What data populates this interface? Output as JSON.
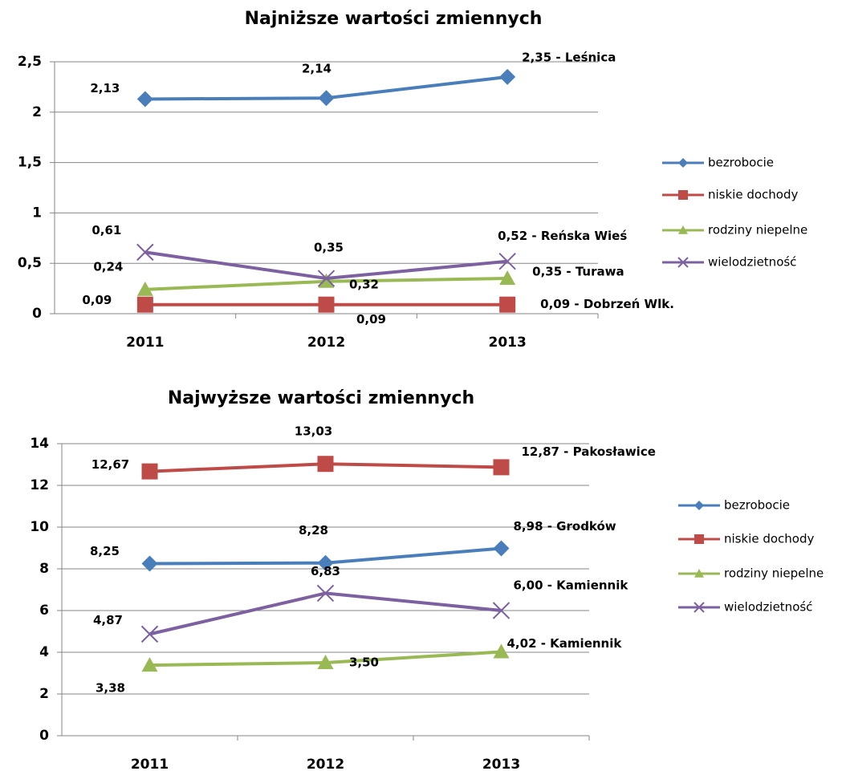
{
  "chart_data": [
    {
      "type": "line",
      "title": "Najniższe wartości zmiennych",
      "categories": [
        "2011",
        "2012",
        "2013"
      ],
      "ylim": [
        0,
        2.5
      ],
      "yticks": [
        0,
        {
          "value": 0.5,
          "label": "0,5"
        },
        1,
        {
          "value": 1.5,
          "label": "1,5"
        },
        2,
        {
          "value": 2.5,
          "label": "2,5"
        }
      ],
      "grid": true,
      "legend": "right",
      "series": [
        {
          "name": "bezrobocie",
          "color": "#4a7ebb",
          "marker": "diamond",
          "values": [
            2.13,
            2.14,
            2.35
          ],
          "value_labels": [
            "2,13",
            "2,14",
            "2,35 -  Leśnica"
          ]
        },
        {
          "name": "niskie dochody",
          "color": "#be4b48",
          "marker": "square",
          "values": [
            0.09,
            0.09,
            0.09
          ],
          "value_labels": [
            "0,09",
            "0,09",
            "0,09 - Dobrzeń Wlk."
          ]
        },
        {
          "name": "rodziny niepelne",
          "color": "#98b954",
          "marker": "triangle",
          "values": [
            0.24,
            0.32,
            0.35
          ],
          "value_labels": [
            "0,24",
            "0,32",
            "0,35 - Turawa"
          ]
        },
        {
          "name": "wielodzietność",
          "color": "#7d60a0",
          "marker": "x",
          "values": [
            0.61,
            0.35,
            0.52
          ],
          "value_labels": [
            "0,61",
            "0,35",
            "0,52 - Reńska Wieś"
          ]
        }
      ]
    },
    {
      "type": "line",
      "title": "Najwyższe wartości zmiennych",
      "categories": [
        "2011",
        "2012",
        "2013"
      ],
      "ylim": [
        0,
        14
      ],
      "yticks": [
        0,
        2,
        4,
        6,
        8,
        10,
        12,
        14
      ],
      "grid": true,
      "legend": "right",
      "series": [
        {
          "name": "bezrobocie",
          "color": "#4a7ebb",
          "marker": "diamond",
          "values": [
            8.25,
            8.28,
            8.98
          ],
          "value_labels": [
            "8,25",
            "8,28",
            "8,98 - Grodków"
          ]
        },
        {
          "name": "niskie dochody",
          "color": "#be4b48",
          "marker": "square",
          "values": [
            12.67,
            13.03,
            12.87
          ],
          "value_labels": [
            "12,67",
            "13,03",
            "12,87 - Pakosławice"
          ]
        },
        {
          "name": "rodziny niepelne",
          "color": "#98b954",
          "marker": "triangle",
          "values": [
            3.38,
            3.5,
            4.02
          ],
          "value_labels": [
            "3,38",
            "3,50",
            "4,02 - Kamiennik"
          ]
        },
        {
          "name": "wielodzietność",
          "color": "#7d60a0",
          "marker": "x",
          "values": [
            4.87,
            6.83,
            6.0
          ],
          "value_labels": [
            "4,87",
            "6,83",
            "6,00 - Kamiennik"
          ]
        }
      ]
    }
  ]
}
